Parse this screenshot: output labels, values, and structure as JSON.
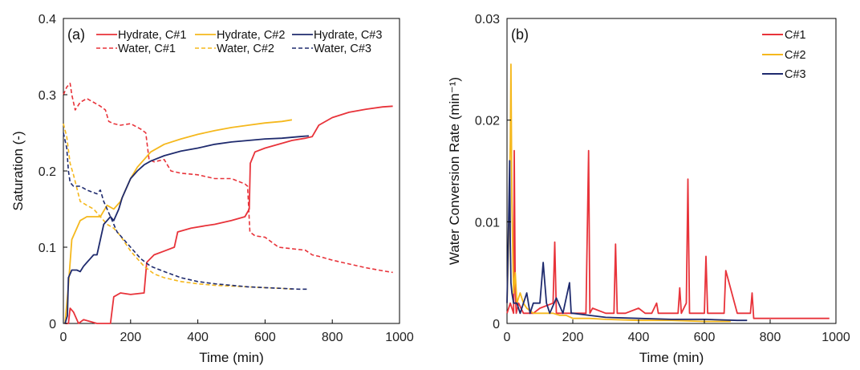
{
  "colors": {
    "c1": "#e8333a",
    "c2": "#f5b81d",
    "c3": "#1f2b6e"
  },
  "chart_data": [
    {
      "panel": "(a)",
      "type": "line",
      "xlabel": "Time (min)",
      "ylabel": "Saturation (-)",
      "xlim": [
        0,
        1000
      ],
      "ylim": [
        0,
        0.4
      ],
      "xticks": [
        0,
        200,
        400,
        600,
        800,
        1000
      ],
      "yticks": [
        0,
        0.1,
        0.2,
        0.3,
        0.4
      ],
      "xtick_labels": [
        "0",
        "200",
        "400",
        "600",
        "800",
        "1000"
      ],
      "ytick_labels": [
        "0",
        "0.1",
        "0.2",
        "0.3",
        "0.4"
      ],
      "grid": false,
      "legend_position": "top",
      "series": [
        {
          "name": "Hydrate, C#1",
          "color": "c1",
          "dash": "solid",
          "x": [
            5,
            15,
            20,
            30,
            45,
            60,
            100,
            140,
            150,
            170,
            200,
            240,
            248,
            252,
            270,
            300,
            330,
            340,
            380,
            420,
            450,
            500,
            540,
            553,
            556,
            570,
            600,
            640,
            680,
            720,
            740,
            760,
            800,
            850,
            900,
            950,
            980
          ],
          "y": [
            0,
            0,
            0.02,
            0.015,
            0,
            0.005,
            0,
            0,
            0.035,
            0.04,
            0.038,
            0.04,
            0.08,
            0.082,
            0.09,
            0.095,
            0.1,
            0.12,
            0.125,
            0.128,
            0.13,
            0.135,
            0.14,
            0.15,
            0.21,
            0.225,
            0.23,
            0.235,
            0.24,
            0.243,
            0.245,
            0.26,
            0.27,
            0.277,
            0.281,
            0.284,
            0.285
          ]
        },
        {
          "name": "Water, C#1",
          "color": "c1",
          "dash": "dashed",
          "x": [
            0,
            10,
            20,
            25,
            35,
            50,
            70,
            90,
            110,
            125,
            135,
            150,
            170,
            200,
            230,
            245,
            255,
            270,
            300,
            320,
            350,
            400,
            450,
            500,
            540,
            548,
            555,
            570,
            600,
            640,
            680,
            720,
            740,
            760,
            800,
            850,
            900,
            950,
            980
          ],
          "y": [
            0.3,
            0.31,
            0.315,
            0.3,
            0.28,
            0.29,
            0.295,
            0.29,
            0.285,
            0.28,
            0.265,
            0.262,
            0.26,
            0.262,
            0.255,
            0.25,
            0.215,
            0.212,
            0.215,
            0.2,
            0.197,
            0.195,
            0.19,
            0.19,
            0.183,
            0.18,
            0.12,
            0.115,
            0.113,
            0.1,
            0.098,
            0.096,
            0.09,
            0.088,
            0.083,
            0.078,
            0.073,
            0.069,
            0.067
          ]
        },
        {
          "name": "Hydrate, C#2",
          "color": "c2",
          "dash": "solid",
          "x": [
            5,
            15,
            20,
            25,
            35,
            50,
            70,
            90,
            110,
            130,
            150,
            170,
            180,
            200,
            220,
            240,
            260,
            300,
            350,
            400,
            450,
            500,
            550,
            600,
            650,
            680
          ],
          "y": [
            0,
            0.05,
            0.08,
            0.11,
            0.12,
            0.135,
            0.14,
            0.14,
            0.14,
            0.155,
            0.15,
            0.16,
            0.17,
            0.19,
            0.205,
            0.215,
            0.225,
            0.235,
            0.242,
            0.248,
            0.253,
            0.257,
            0.26,
            0.263,
            0.265,
            0.267
          ]
        },
        {
          "name": "Water, C#2",
          "color": "c2",
          "dash": "dashed",
          "x": [
            0,
            10,
            20,
            30,
            50,
            70,
            90,
            110,
            130,
            150,
            170,
            180,
            200,
            220,
            240,
            270,
            300,
            350,
            400,
            450,
            500,
            550,
            600,
            650,
            680
          ],
          "y": [
            0.262,
            0.245,
            0.21,
            0.195,
            0.16,
            0.155,
            0.15,
            0.14,
            0.13,
            0.125,
            0.115,
            0.108,
            0.095,
            0.085,
            0.075,
            0.065,
            0.06,
            0.055,
            0.052,
            0.05,
            0.049,
            0.048,
            0.047,
            0.046,
            0.045
          ]
        },
        {
          "name": "Hydrate, C#3",
          "color": "c3",
          "dash": "solid",
          "x": [
            5,
            12,
            15,
            20,
            25,
            40,
            50,
            60,
            70,
            80,
            90,
            100,
            110,
            120,
            130,
            140,
            150,
            165,
            175,
            180,
            200,
            220,
            240,
            260,
            300,
            350,
            400,
            450,
            500,
            550,
            600,
            650,
            700,
            730
          ],
          "y": [
            0,
            0.01,
            0.06,
            0.065,
            0.07,
            0.07,
            0.068,
            0.075,
            0.08,
            0.085,
            0.09,
            0.09,
            0.11,
            0.13,
            0.135,
            0.14,
            0.135,
            0.15,
            0.165,
            0.17,
            0.19,
            0.2,
            0.208,
            0.213,
            0.22,
            0.226,
            0.23,
            0.235,
            0.238,
            0.24,
            0.242,
            0.243,
            0.245,
            0.246
          ]
        },
        {
          "name": "Water, C#3",
          "color": "c3",
          "dash": "dashed",
          "x": [
            0,
            10,
            15,
            20,
            30,
            50,
            70,
            100,
            110,
            120,
            130,
            140,
            150,
            160,
            180,
            200,
            230,
            260,
            300,
            350,
            400,
            450,
            500,
            550,
            600,
            650,
            700,
            730
          ],
          "y": [
            0.25,
            0.23,
            0.2,
            0.185,
            0.18,
            0.18,
            0.175,
            0.17,
            0.175,
            0.16,
            0.15,
            0.14,
            0.13,
            0.12,
            0.11,
            0.1,
            0.085,
            0.075,
            0.068,
            0.06,
            0.055,
            0.052,
            0.05,
            0.048,
            0.047,
            0.046,
            0.045,
            0.045
          ]
        }
      ]
    },
    {
      "panel": "(b)",
      "type": "line",
      "xlabel": "Time (min)",
      "ylabel": "Water Conversion Rate (min⁻¹)",
      "xlim": [
        0,
        1000
      ],
      "ylim": [
        0,
        0.03
      ],
      "xticks": [
        0,
        200,
        400,
        600,
        800,
        1000
      ],
      "yticks": [
        0,
        0.01,
        0.02,
        0.03
      ],
      "xtick_labels": [
        "0",
        "200",
        "400",
        "600",
        "800",
        "1000"
      ],
      "ytick_labels": [
        "0",
        "0.01",
        "0.02",
        "0.03"
      ],
      "grid": false,
      "legend_position": "top-right",
      "series": [
        {
          "name": "C#1",
          "color": "c1",
          "x": [
            0,
            10,
            20,
            22,
            25,
            28,
            35,
            50,
            80,
            100,
            140,
            145,
            150,
            170,
            200,
            240,
            248,
            252,
            260,
            300,
            325,
            330,
            335,
            360,
            400,
            420,
            440,
            455,
            460,
            500,
            520,
            525,
            530,
            545,
            550,
            555,
            570,
            600,
            605,
            610,
            640,
            660,
            665,
            700,
            740,
            745,
            750,
            800,
            850,
            900,
            950,
            980
          ],
          "y": [
            0.001,
            0.002,
            0.001,
            0.017,
            0.003,
            0.001,
            0.002,
            0.001,
            0.001,
            0.0015,
            0.002,
            0.008,
            0.001,
            0.001,
            0.001,
            0.001,
            0.017,
            0.001,
            0.0015,
            0.001,
            0.001,
            0.0078,
            0.001,
            0.001,
            0.0015,
            0.001,
            0.001,
            0.002,
            0.001,
            0.001,
            0.001,
            0.0035,
            0.001,
            0.002,
            0.0142,
            0.001,
            0.001,
            0.001,
            0.0066,
            0.001,
            0.001,
            0.001,
            0.0052,
            0.001,
            0.001,
            0.003,
            0.0005,
            0.0005,
            0.0005,
            0.0005,
            0.0005,
            0.0005
          ]
        },
        {
          "name": "C#2",
          "color": "c2",
          "x": [
            0,
            5,
            10,
            12,
            15,
            18,
            20,
            25,
            30,
            40,
            50,
            60,
            80,
            100,
            120,
            140,
            160,
            180,
            200,
            250,
            300,
            400,
            500,
            600,
            680
          ],
          "y": [
            0.002,
            0.008,
            0.018,
            0.0255,
            0.012,
            0.006,
            0.003,
            0.005,
            0.002,
            0.003,
            0.002,
            0.0015,
            0.001,
            0.001,
            0.001,
            0.001,
            0.0008,
            0.0008,
            0.0005,
            0.0005,
            0.0004,
            0.0003,
            0.0003,
            0.0002,
            0.0002
          ]
        },
        {
          "name": "C#3",
          "color": "c3",
          "x": [
            0,
            5,
            8,
            10,
            12,
            15,
            20,
            30,
            40,
            60,
            70,
            80,
            100,
            110,
            115,
            120,
            130,
            150,
            170,
            190,
            195,
            200,
            250,
            300,
            400,
            500,
            600,
            700,
            730
          ],
          "y": [
            0.002,
            0.01,
            0.016,
            0.008,
            0.004,
            0.003,
            0.002,
            0.002,
            0.001,
            0.003,
            0.001,
            0.002,
            0.002,
            0.006,
            0.004,
            0.002,
            0.001,
            0.0025,
            0.001,
            0.004,
            0.001,
            0.001,
            0.0008,
            0.0006,
            0.0005,
            0.0004,
            0.0004,
            0.0003,
            0.0003
          ]
        }
      ]
    }
  ]
}
